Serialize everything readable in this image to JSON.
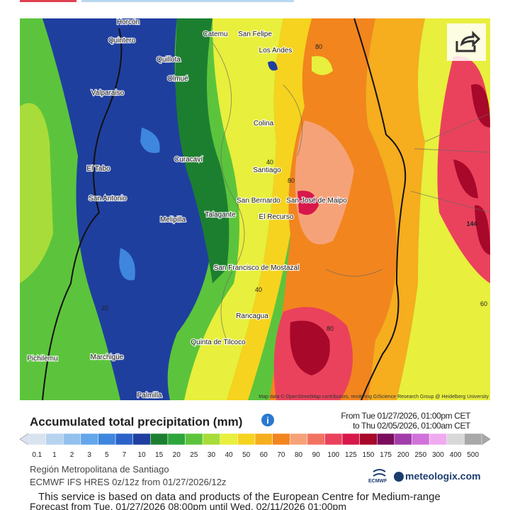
{
  "map": {
    "places": [
      "Horcón",
      "Quintero",
      "Catemu",
      "San Felipe",
      "Los Andes",
      "Quillota",
      "Olmué",
      "Valparaiso",
      "Colina",
      "Curacaví",
      "El Tabo",
      "Santiago",
      "San Antonio",
      "San Bernardo",
      "San José de Maipo",
      "Talagante",
      "Melipilla",
      "El Recurso",
      "San Francisco de Mostazal",
      "Rancagua",
      "Quinta de Tilcoco",
      "Marchigüe",
      "Pichilemu",
      "Palmilla"
    ],
    "contour_labels": [
      "80",
      "40",
      "80",
      "40",
      "20",
      "80",
      "60",
      "144"
    ],
    "attribution": "Map data © OpenStreetMap contributors, rendering GIScience Research Group @ Heidelberg University"
  },
  "legend": {
    "title": "Accumulated total precipitation (mm)",
    "from": "From Tue 01/27/2026, 01:00pm CET",
    "to": "to Thu 02/05/2026, 01:00am CET",
    "scale": [
      {
        "label": "0.1",
        "color": "#d9e3f0"
      },
      {
        "label": "1",
        "color": "#b7d3f0"
      },
      {
        "label": "2",
        "color": "#92c1ee"
      },
      {
        "label": "3",
        "color": "#63a6ea"
      },
      {
        "label": "5",
        "color": "#3f86df"
      },
      {
        "label": "7",
        "color": "#2c62c8"
      },
      {
        "label": "10",
        "color": "#1f3f9f"
      },
      {
        "label": "15",
        "color": "#1c7f30"
      },
      {
        "label": "20",
        "color": "#2ea63c"
      },
      {
        "label": "25",
        "color": "#5cc43c"
      },
      {
        "label": "30",
        "color": "#a8dc3a"
      },
      {
        "label": "40",
        "color": "#e8ef3c"
      },
      {
        "label": "50",
        "color": "#f6d31e"
      },
      {
        "label": "60",
        "color": "#f6ad1e"
      },
      {
        "label": "70",
        "color": "#f2851e"
      },
      {
        "label": "80",
        "color": "#f6a278"
      },
      {
        "label": "90",
        "color": "#f27262"
      },
      {
        "label": "100",
        "color": "#ea425c"
      },
      {
        "label": "125",
        "color": "#d8184a"
      },
      {
        "label": "150",
        "color": "#a8082a"
      },
      {
        "label": "175",
        "color": "#7a0c5c"
      },
      {
        "label": "200",
        "color": "#a23caa"
      },
      {
        "label": "250",
        "color": "#d072da"
      },
      {
        "label": "300",
        "color": "#f0aaf0"
      },
      {
        "label": "400",
        "color": "#d8d8d8"
      },
      {
        "label": "500",
        "color": "#a8a8a8"
      }
    ]
  },
  "info": {
    "region": "Región Metropolitana de Santiago",
    "model": "ECMWF IFS HRES 0z/12z from 01/27/2026/12z",
    "ecmwf": "ECMWF",
    "brand": "meteologix.com",
    "notice": "This service is based on data and products of the European Centre for Medium-range",
    "forecast": "Forecast from Tue, 01/27/2026 08:00pm until Wed, 02/11/2026 01:00pm"
  }
}
